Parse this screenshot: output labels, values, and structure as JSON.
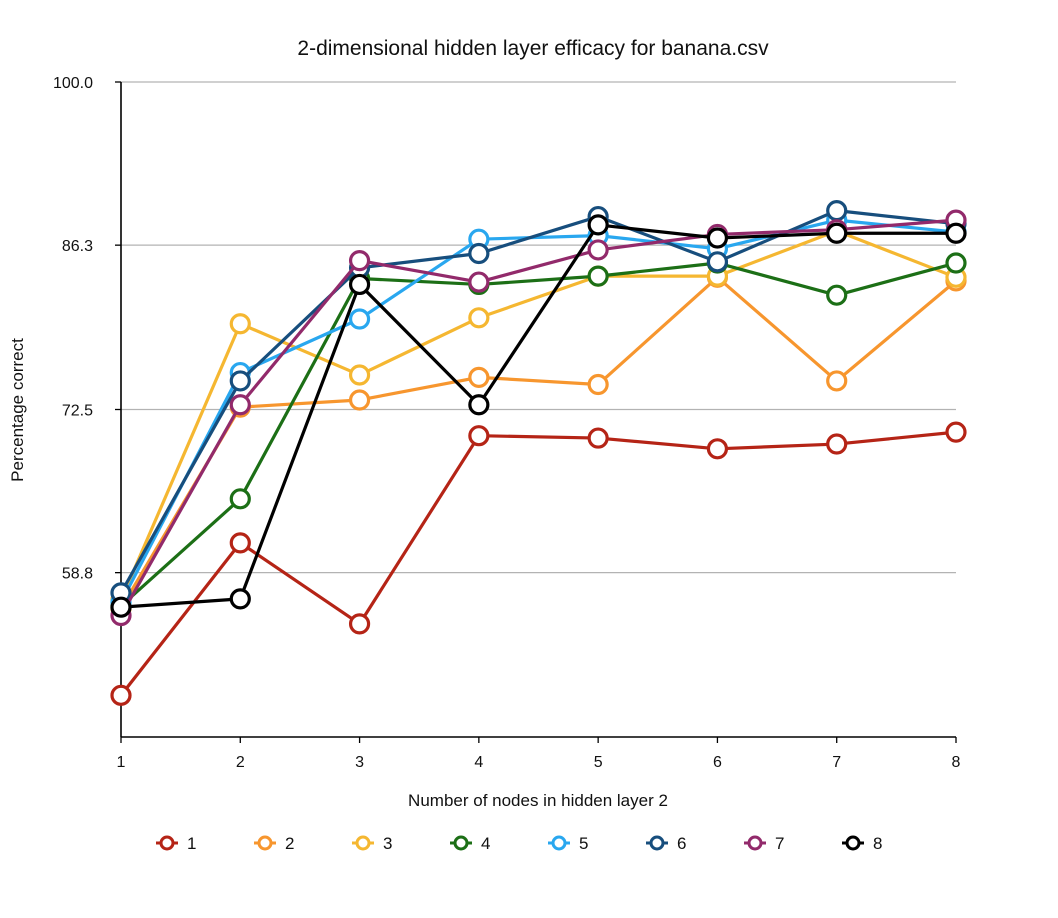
{
  "chart_data": {
    "type": "line",
    "title": "2-dimensional hidden layer efficacy for banana.csv",
    "xlabel": "Number of nodes in hidden layer 2",
    "ylabel": "Percentage correct",
    "x": [
      1,
      2,
      3,
      4,
      5,
      6,
      7,
      8
    ],
    "ylim": [
      45.0,
      100.0
    ],
    "yticks": [
      100.0,
      86.3,
      72.5,
      58.8
    ],
    "ytick_labels": [
      "100.0",
      "86.3",
      "72.5",
      "58.8"
    ],
    "grid": true,
    "legend_position": "bottom",
    "series": [
      {
        "name": "1",
        "color": "#b52416",
        "values": [
          48.5,
          61.3,
          54.5,
          70.3,
          70.1,
          69.2,
          69.6,
          70.6
        ]
      },
      {
        "name": "2",
        "color": "#f7962e",
        "values": [
          55.8,
          72.7,
          73.3,
          75.2,
          74.6,
          83.6,
          74.9,
          83.3
        ]
      },
      {
        "name": "3",
        "color": "#f5b731",
        "values": [
          56.5,
          79.7,
          75.4,
          80.2,
          83.7,
          83.7,
          87.5,
          83.6
        ]
      },
      {
        "name": "4",
        "color": "#1c6f16",
        "values": [
          56.0,
          65.0,
          83.5,
          83.0,
          83.7,
          84.8,
          82.1,
          84.8
        ]
      },
      {
        "name": "5",
        "color": "#29a7ef",
        "values": [
          56.3,
          75.6,
          80.1,
          86.8,
          87.1,
          86.0,
          88.4,
          87.4
        ]
      },
      {
        "name": "6",
        "color": "#174e7d",
        "values": [
          57.1,
          74.9,
          84.4,
          85.6,
          88.7,
          84.9,
          89.2,
          88.1
        ]
      },
      {
        "name": "7",
        "color": "#922a6b",
        "values": [
          55.2,
          72.9,
          85.0,
          83.2,
          85.9,
          87.2,
          87.6,
          88.4
        ]
      },
      {
        "name": "8",
        "color": "#000000",
        "values": [
          55.9,
          56.6,
          83.0,
          72.9,
          88.0,
          86.9,
          87.3,
          87.3
        ]
      }
    ]
  }
}
